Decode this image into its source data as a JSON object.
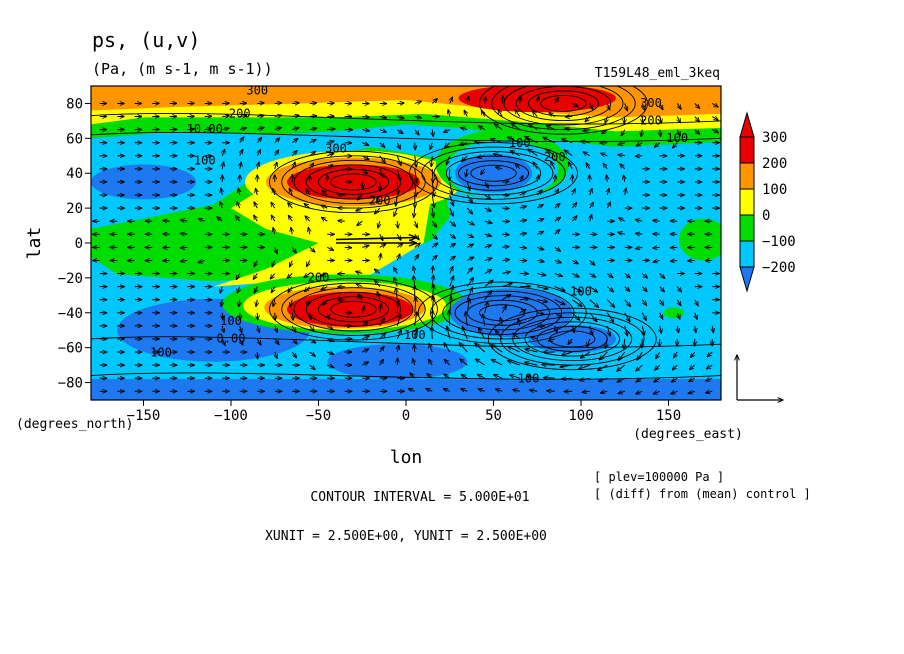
{
  "chart_data": {
    "type": "heatmap",
    "title": "ps, (u,v)",
    "units": "(Pa, (m s-1, m s-1))",
    "run_label": "T159L48_eml_3keq",
    "xlabel": "lon",
    "ylabel": "lat",
    "x_units": "(degrees_east)",
    "y_units": "(degrees_north)",
    "xlim": [
      -180,
      180
    ],
    "ylim": [
      -90,
      90
    ],
    "x_ticks": [
      -150,
      -100,
      -50,
      0,
      50,
      100,
      150
    ],
    "y_ticks": [
      -80,
      -60,
      -40,
      -20,
      0,
      20,
      40,
      60,
      80
    ],
    "colorbar": {
      "levels": [
        -200,
        -100,
        0,
        100,
        200,
        300
      ],
      "colors": [
        "#1e78f0",
        "#00c8ff",
        "#00dc00",
        "#ffff00",
        "#ff9600",
        "#e80000",
        "#e80000"
      ]
    },
    "features": [
      {
        "kind": "high",
        "lon": -30,
        "lat": 35,
        "value": 300
      },
      {
        "kind": "high",
        "lon": -30,
        "lat": -38,
        "value": 300
      },
      {
        "kind": "high",
        "lon": 90,
        "lat": 80,
        "value": 300
      },
      {
        "kind": "low",
        "lon": 50,
        "lat": 40,
        "value": -200
      },
      {
        "kind": "low",
        "lon": 55,
        "lat": -40,
        "value": -200
      },
      {
        "kind": "low",
        "lon": 95,
        "lat": -55,
        "value": -200
      }
    ],
    "contour_labels": [
      {
        "text": "300",
        "lon": -85,
        "lat": 85
      },
      {
        "text": "200",
        "lon": -95,
        "lat": 72
      },
      {
        "text": "10.00",
        "lon": -115,
        "lat": 63
      },
      {
        "text": "100",
        "lon": -115,
        "lat": 45
      },
      {
        "text": "300",
        "lon": -40,
        "lat": 52
      },
      {
        "text": "200",
        "lon": -15,
        "lat": 22
      },
      {
        "text": "200",
        "lon": 85,
        "lat": 47
      },
      {
        "text": "100",
        "lon": 65,
        "lat": 55
      },
      {
        "text": "100",
        "lon": 155,
        "lat": 58
      },
      {
        "text": "200",
        "lon": 140,
        "lat": 68
      },
      {
        "text": "300",
        "lon": 140,
        "lat": 78
      },
      {
        "text": "200",
        "lon": -50,
        "lat": -22
      },
      {
        "text": "100",
        "lon": -100,
        "lat": -47
      },
      {
        "text": "0.00",
        "lon": -100,
        "lat": -57
      },
      {
        "text": "100",
        "lon": -140,
        "lat": -65
      },
      {
        "text": "100",
        "lon": 5,
        "lat": -55
      },
      {
        "text": "100",
        "lon": 100,
        "lat": -30
      },
      {
        "text": "100",
        "lon": 70,
        "lat": -80
      }
    ],
    "reference_vector": {
      "xunit": 2.5,
      "yunit": 2.5
    }
  },
  "footer": {
    "contour_interval": "CONTOUR INTERVAL = 5.000E+01",
    "units_line": "XUNIT = 2.500E+00, YUNIT = 2.500E+00",
    "plev_note": "[ plev=100000 Pa ]",
    "diff_note": "[ (diff) from (mean) control ]"
  }
}
